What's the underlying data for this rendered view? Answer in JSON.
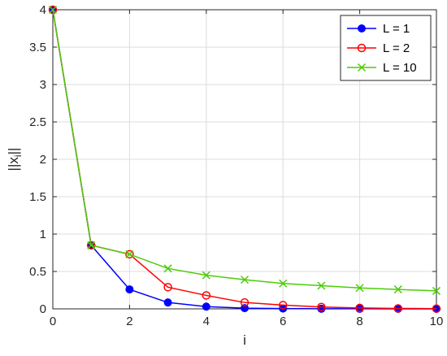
{
  "chart_data": {
    "type": "line",
    "title": "",
    "xlabel": "i",
    "ylabel": "||x_i||",
    "ylabel_main": "||x",
    "ylabel_sub": "i",
    "ylabel_tail": "||",
    "xlim": [
      0,
      10
    ],
    "ylim": [
      0,
      4
    ],
    "xticks": [
      0,
      2,
      4,
      6,
      8,
      10
    ],
    "yticks": [
      0,
      0.5,
      1,
      1.5,
      2,
      2.5,
      3,
      3.5,
      4
    ],
    "xtick_labels": [
      "0",
      "2",
      "4",
      "6",
      "8",
      "10"
    ],
    "ytick_labels": [
      "0",
      "0.5",
      "1",
      "1.5",
      "2",
      "2.5",
      "3",
      "3.5",
      "4"
    ],
    "grid": true,
    "legend_position": "top-right",
    "x": [
      0,
      1,
      2,
      3,
      4,
      5,
      6,
      7,
      8,
      9,
      10
    ],
    "series": [
      {
        "name": "L = 1",
        "color": "#0000ff",
        "marker": "filled-circle",
        "values": [
          4.0,
          0.85,
          0.26,
          0.085,
          0.03,
          0.01,
          0.004,
          0.002,
          0.001,
          0.0005,
          0.0002
        ]
      },
      {
        "name": "L = 2",
        "color": "#ff0000",
        "marker": "open-circle",
        "values": [
          4.0,
          0.85,
          0.73,
          0.29,
          0.18,
          0.085,
          0.05,
          0.025,
          0.012,
          0.006,
          0.003
        ]
      },
      {
        "name": "L = 10",
        "color": "#4dcc0a",
        "marker": "x",
        "values": [
          4.0,
          0.85,
          0.73,
          0.54,
          0.45,
          0.39,
          0.34,
          0.31,
          0.28,
          0.26,
          0.24
        ]
      }
    ]
  }
}
